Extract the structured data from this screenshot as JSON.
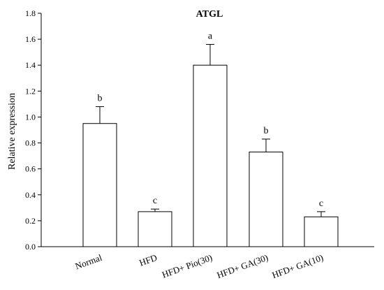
{
  "chart_data": {
    "type": "bar",
    "title": "ATGL",
    "xlabel": "",
    "ylabel": "Relative expression",
    "ylim": [
      0,
      1.8
    ],
    "yticks": [
      0.0,
      0.2,
      0.4,
      0.6,
      0.8,
      1.0,
      1.2,
      1.4,
      1.6,
      1.8
    ],
    "ytick_labels": [
      "0.0",
      "0.2",
      "0.4",
      "0.6",
      "0.8",
      "1.0",
      "1.2",
      "1.4",
      "1.6",
      "1.8"
    ],
    "categories": [
      "Normal",
      "HFD",
      "HFD+ Pio(30)",
      "HFD+ GA(30)",
      "HFD+ GA(10)"
    ],
    "values": [
      0.95,
      0.27,
      1.4,
      0.73,
      0.23
    ],
    "errors": [
      0.13,
      0.02,
      0.16,
      0.1,
      0.04
    ],
    "significance_letters": [
      "b",
      "c",
      "a",
      "b",
      "c"
    ],
    "grid": false,
    "legend": "none",
    "colors": {
      "bar_fill": "#ffffff",
      "bar_stroke": "#000000",
      "text": "#000000"
    }
  }
}
